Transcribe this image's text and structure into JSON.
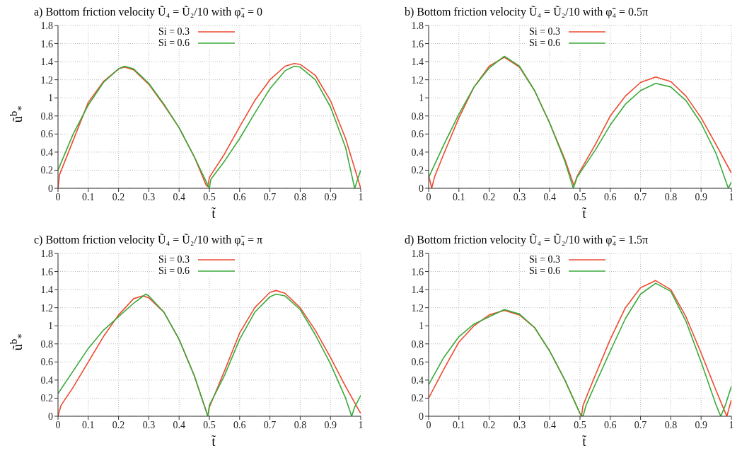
{
  "chart_data": [
    {
      "type": "line",
      "title": "a) Bottom friction velocity Ũ₄ = Ũ₂/10 with φ̃₄ = 0",
      "xlabel": "t̃",
      "ylabel": "ũ$^{b}$$_{*}$",
      "xlim": [
        0,
        1
      ],
      "ylim": [
        0,
        1.8
      ],
      "xticks": [
        0,
        0.1,
        0.2,
        0.3,
        0.4,
        0.5,
        0.6,
        0.7,
        0.8,
        0.9,
        1
      ],
      "yticks": [
        0,
        0.2,
        0.4,
        0.6,
        0.8,
        1,
        1.2,
        1.4,
        1.6,
        1.8
      ],
      "grid": true,
      "legend": "top",
      "line_style": "solid",
      "series": [
        {
          "name": "Si = 0.3",
          "color": "#ee4a30",
          "x": [
            0,
            0.005,
            0.1,
            0.15,
            0.2,
            0.22,
            0.25,
            0.3,
            0.35,
            0.4,
            0.45,
            0.49,
            0.495,
            0.5,
            0.55,
            0.6,
            0.65,
            0.7,
            0.75,
            0.78,
            0.8,
            0.85,
            0.9,
            0.95,
            1
          ],
          "values": [
            0,
            0.15,
            0.95,
            1.18,
            1.32,
            1.34,
            1.31,
            1.15,
            0.92,
            0.67,
            0.35,
            0.03,
            0.02,
            0.12,
            0.38,
            0.68,
            0.97,
            1.2,
            1.35,
            1.38,
            1.37,
            1.25,
            0.97,
            0.55,
            0
          ]
        },
        {
          "name": "Si = 0.6",
          "color": "#3aaa3a",
          "x": [
            0,
            0.05,
            0.1,
            0.15,
            0.2,
            0.22,
            0.25,
            0.3,
            0.35,
            0.4,
            0.45,
            0.49,
            0.5,
            0.505,
            0.55,
            0.6,
            0.65,
            0.7,
            0.75,
            0.78,
            0.8,
            0.85,
            0.9,
            0.95,
            0.98,
            1
          ],
          "values": [
            0.2,
            0.6,
            0.92,
            1.17,
            1.32,
            1.35,
            1.32,
            1.16,
            0.93,
            0.67,
            0.35,
            0.07,
            0,
            0.1,
            0.3,
            0.55,
            0.83,
            1.1,
            1.3,
            1.35,
            1.34,
            1.2,
            0.9,
            0.45,
            0,
            0.2
          ]
        }
      ]
    },
    {
      "type": "line",
      "title": "b) Bottom friction velocity Ũ₄ = Ũ₂/10 with φ̃₄ = 0.5π",
      "xlabel": "t̃",
      "xlim": [
        0,
        1
      ],
      "ylim": [
        0,
        1.8
      ],
      "xticks": [
        0,
        0.1,
        0.2,
        0.3,
        0.4,
        0.5,
        0.6,
        0.7,
        0.8,
        0.9,
        1
      ],
      "yticks": [
        0,
        0.2,
        0.4,
        0.6,
        0.8,
        1,
        1.2,
        1.4,
        1.6,
        1.8
      ],
      "grid": true,
      "legend": "top",
      "line_style": "solid",
      "series": [
        {
          "name": "Si = 0.3",
          "color": "#ee4a30",
          "x": [
            0,
            0.01,
            0.02,
            0.05,
            0.1,
            0.15,
            0.2,
            0.25,
            0.3,
            0.35,
            0.4,
            0.45,
            0.48,
            0.49,
            0.55,
            0.6,
            0.65,
            0.7,
            0.75,
            0.8,
            0.85,
            0.9,
            0.95,
            1
          ],
          "values": [
            0.15,
            0,
            0.13,
            0.38,
            0.78,
            1.12,
            1.35,
            1.45,
            1.34,
            1.08,
            0.72,
            0.32,
            0.03,
            0.13,
            0.48,
            0.8,
            1.02,
            1.17,
            1.23,
            1.18,
            1.02,
            0.78,
            0.48,
            0.17
          ]
        },
        {
          "name": "Si = 0.6",
          "color": "#3aaa3a",
          "x": [
            0,
            0.05,
            0.1,
            0.15,
            0.2,
            0.25,
            0.3,
            0.35,
            0.4,
            0.45,
            0.478,
            0.49,
            0.55,
            0.6,
            0.65,
            0.7,
            0.75,
            0.8,
            0.85,
            0.9,
            0.95,
            0.99,
            1
          ],
          "values": [
            0.12,
            0.48,
            0.82,
            1.12,
            1.33,
            1.46,
            1.35,
            1.08,
            0.72,
            0.3,
            0,
            0.12,
            0.42,
            0.7,
            0.93,
            1.08,
            1.16,
            1.12,
            0.97,
            0.72,
            0.38,
            0,
            0.07
          ]
        }
      ]
    },
    {
      "type": "line",
      "title": "c) Bottom friction velocity Ũ₄ = Ũ₂/10 with φ̃₄ = π",
      "xlabel": "t̃",
      "ylabel": "ũ$^{b}$$_{*}$",
      "xlim": [
        0,
        1
      ],
      "ylim": [
        0,
        1.8
      ],
      "xticks": [
        0,
        0.1,
        0.2,
        0.3,
        0.4,
        0.5,
        0.6,
        0.7,
        0.8,
        0.9,
        1
      ],
      "yticks": [
        0,
        0.2,
        0.4,
        0.6,
        0.8,
        1,
        1.2,
        1.4,
        1.6,
        1.8
      ],
      "grid": true,
      "legend": "top",
      "line_style": "solid",
      "series": [
        {
          "name": "Si = 0.3",
          "color": "#ee4a30",
          "x": [
            0,
            0.01,
            0.05,
            0.1,
            0.15,
            0.2,
            0.25,
            0.28,
            0.3,
            0.35,
            0.4,
            0.45,
            0.49,
            0.495,
            0.5,
            0.55,
            0.6,
            0.65,
            0.7,
            0.72,
            0.75,
            0.8,
            0.85,
            0.9,
            0.95,
            1
          ],
          "values": [
            0,
            0.12,
            0.32,
            0.6,
            0.88,
            1.12,
            1.3,
            1.33,
            1.31,
            1.15,
            0.85,
            0.45,
            0.05,
            0,
            0.1,
            0.5,
            0.92,
            1.2,
            1.37,
            1.39,
            1.36,
            1.2,
            0.95,
            0.65,
            0.33,
            0.03
          ]
        },
        {
          "name": "Si = 0.6",
          "color": "#3aaa3a",
          "x": [
            0,
            0.05,
            0.1,
            0.15,
            0.2,
            0.25,
            0.29,
            0.3,
            0.35,
            0.4,
            0.45,
            0.49,
            0.495,
            0.5,
            0.55,
            0.6,
            0.65,
            0.7,
            0.72,
            0.75,
            0.8,
            0.85,
            0.9,
            0.95,
            0.97,
            0.98,
            1
          ],
          "values": [
            0.25,
            0.5,
            0.75,
            0.95,
            1.1,
            1.25,
            1.35,
            1.33,
            1.15,
            0.85,
            0.45,
            0.05,
            0,
            0.12,
            0.45,
            0.85,
            1.15,
            1.32,
            1.35,
            1.33,
            1.18,
            0.9,
            0.58,
            0.2,
            0,
            0.1,
            0.23
          ]
        }
      ]
    },
    {
      "type": "line",
      "title": "d) Bottom friction velocity Ũ₄ = Ũ₂/10 with φ̃₄ = 1.5π",
      "xlabel": "t̃",
      "xlim": [
        0,
        1
      ],
      "ylim": [
        0,
        1.8
      ],
      "xticks": [
        0,
        0.1,
        0.2,
        0.3,
        0.4,
        0.5,
        0.6,
        0.7,
        0.8,
        0.9,
        1
      ],
      "yticks": [
        0,
        0.2,
        0.4,
        0.6,
        0.8,
        1,
        1.2,
        1.4,
        1.6,
        1.8
      ],
      "grid": true,
      "legend": "top",
      "line_style": "solid",
      "series": [
        {
          "name": "Si = 0.3",
          "color": "#ee4a30",
          "x": [
            0,
            0.05,
            0.1,
            0.15,
            0.2,
            0.25,
            0.3,
            0.35,
            0.4,
            0.45,
            0.5,
            0.505,
            0.51,
            0.55,
            0.6,
            0.65,
            0.7,
            0.75,
            0.8,
            0.85,
            0.9,
            0.95,
            0.985,
            1
          ],
          "values": [
            0.2,
            0.52,
            0.82,
            1,
            1.12,
            1.17,
            1.12,
            0.98,
            0.72,
            0.4,
            0.03,
            0,
            0.12,
            0.45,
            0.85,
            1.2,
            1.42,
            1.5,
            1.4,
            1.1,
            0.7,
            0.28,
            0,
            0.18
          ]
        },
        {
          "name": "Si = 0.6",
          "color": "#3aaa3a",
          "x": [
            0,
            0.05,
            0.1,
            0.15,
            0.2,
            0.25,
            0.3,
            0.35,
            0.4,
            0.45,
            0.5,
            0.51,
            0.52,
            0.55,
            0.6,
            0.65,
            0.7,
            0.75,
            0.8,
            0.85,
            0.9,
            0.95,
            0.965,
            0.98,
            1
          ],
          "values": [
            0.35,
            0.65,
            0.88,
            1.02,
            1.1,
            1.18,
            1.13,
            0.98,
            0.72,
            0.4,
            0.03,
            0,
            0.12,
            0.35,
            0.72,
            1.08,
            1.35,
            1.47,
            1.38,
            1.05,
            0.6,
            0.12,
            0,
            0.12,
            0.33
          ]
        }
      ]
    }
  ]
}
